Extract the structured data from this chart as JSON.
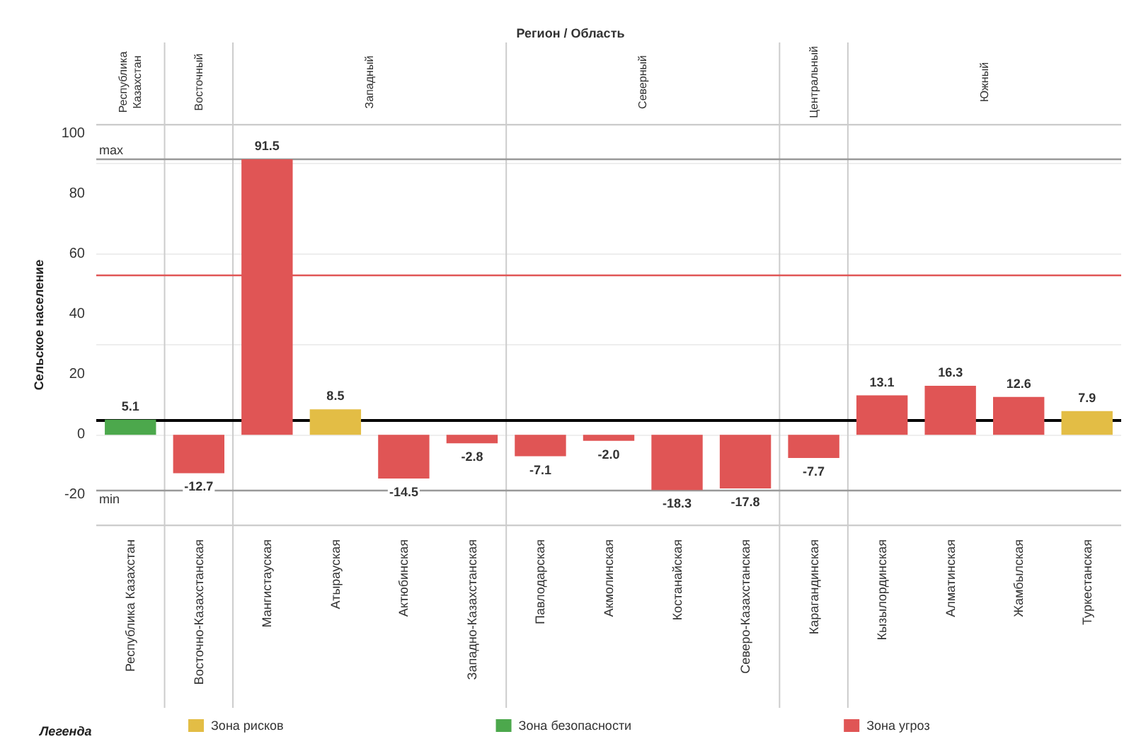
{
  "chart_data": {
    "type": "bar",
    "title": "Регион / Область",
    "ylabel": "Сельское население",
    "legend_title": "Легенда",
    "categories": [
      "Республика Казахстан",
      "Восточно-Казахстанская",
      "Мангистауская",
      "Атырауская",
      "Актюбинская",
      "Западно-Казахстанская",
      "Павлодарская",
      "Акмолинская",
      "Костанайская",
      "Северо-Казахстанская",
      "Карагандинская",
      "Кызылординская",
      "Алматинская",
      "Жамбылская",
      "Туркестанская"
    ],
    "series": [
      {
        "name": "Зона рисков",
        "color": "#e3bd45",
        "values": [
          null,
          null,
          null,
          8.5,
          null,
          null,
          null,
          null,
          null,
          null,
          null,
          null,
          null,
          null,
          7.9
        ],
        "value_labels": [
          null,
          null,
          null,
          "8.5",
          null,
          null,
          null,
          null,
          null,
          null,
          null,
          null,
          null,
          null,
          "7.9"
        ]
      },
      {
        "name": "Зона безопасности",
        "color": "#4ca84c",
        "values": [
          5.1,
          null,
          null,
          null,
          null,
          null,
          null,
          null,
          null,
          null,
          null,
          null,
          null,
          null,
          null
        ],
        "value_labels": [
          "5.1",
          null,
          null,
          null,
          null,
          null,
          null,
          null,
          null,
          null,
          null,
          null,
          null,
          null,
          null
        ]
      },
      {
        "name": "Зона угроз",
        "color": "#e05555",
        "values": [
          null,
          -12.7,
          91.5,
          null,
          -14.5,
          -2.8,
          -7.1,
          -2.0,
          -18.3,
          -17.8,
          -7.7,
          13.1,
          16.3,
          12.6,
          null
        ],
        "value_labels": [
          null,
          "-12.7",
          "91.5",
          null,
          "-14.5",
          "-2.8",
          "-7.1",
          "-2.0",
          "-18.3",
          "-17.8",
          "-7.7",
          "13.1",
          "16.3",
          "12.6",
          null
        ]
      }
    ],
    "annotations": [
      "Республика Казахстан",
      "Восточный",
      "Западный",
      "Северный",
      "Центральный",
      "Южный"
    ],
    "ref_lines": [
      {
        "axis": "y",
        "value": 91.5,
        "label": "max",
        "color": "#999999"
      },
      {
        "axis": "y",
        "value": -18.3,
        "label": "min",
        "color": "#999999"
      },
      {
        "axis": "y",
        "value": 53,
        "color": "#e05555"
      },
      {
        "axis": "y",
        "value": 5.1,
        "color": "#000000"
      }
    ],
    "ylim": [
      -30,
      103
    ],
    "yticks": [
      -20,
      0,
      20,
      40,
      60,
      80,
      100
    ],
    "grid": "y",
    "legend": "bottom left"
  }
}
